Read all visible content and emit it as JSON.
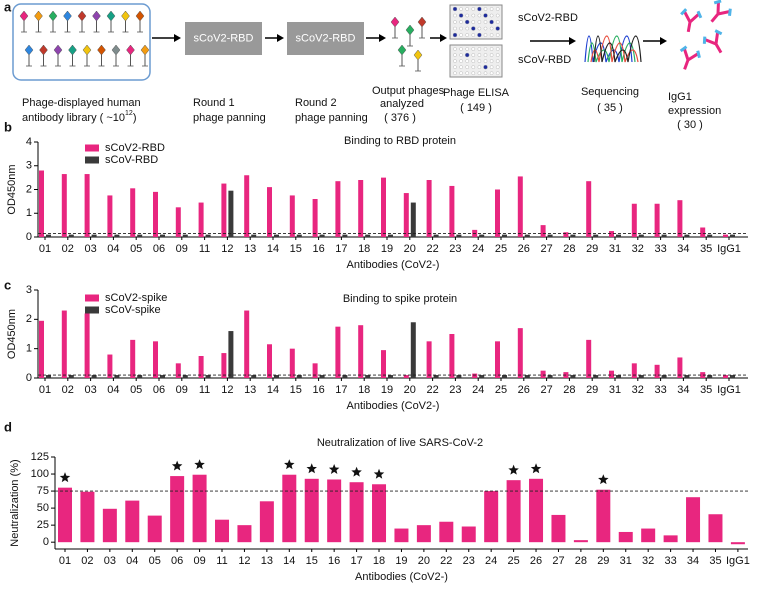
{
  "schematic": {
    "panel_label": "a",
    "library_lines": [
      "Phage-displayed human",
      "antibody library ( ~10"
    ],
    "library_exponent": "12",
    "library_suffix": ")",
    "round1_box": "sCoV2-RBD",
    "round1_lines": [
      "Round 1",
      "phage panning"
    ],
    "round2_box": "sCoV2-RBD",
    "round2_lines": [
      "Round 2",
      "phage panning"
    ],
    "output_lines": [
      "Output phages",
      "analyzed",
      "( 376 )"
    ],
    "elisa_plates": [
      "sCoV2-RBD",
      "sCoV-RBD"
    ],
    "elisa_lines": [
      "Phage ELISA",
      "( 149 )"
    ],
    "sequencing_lines": [
      "Sequencing",
      "( 35 )"
    ],
    "igg_lines": [
      "IgG1",
      "expression",
      "( 30 )"
    ]
  },
  "chart_data": [
    {
      "type": "bar",
      "panel_label": "b",
      "title": "Binding to RBD protein",
      "ylabel": "OD450nm",
      "xlabel": "Antibodies (CoV2-)",
      "categories": [
        "01",
        "02",
        "03",
        "04",
        "05",
        "06",
        "09",
        "11",
        "12",
        "13",
        "14",
        "15",
        "16",
        "17",
        "18",
        "19",
        "20",
        "22",
        "23",
        "24",
        "25",
        "26",
        "27",
        "28",
        "29",
        "31",
        "32",
        "33",
        "34",
        "35",
        "IgG1"
      ],
      "series": [
        {
          "name": "sCoV2-RBD",
          "color": "#e8267f",
          "values": [
            2.8,
            2.65,
            2.65,
            1.75,
            2.05,
            1.9,
            1.25,
            1.45,
            2.25,
            2.6,
            2.1,
            1.75,
            1.6,
            2.35,
            2.4,
            2.5,
            1.85,
            2.4,
            2.15,
            0.3,
            2.0,
            2.55,
            0.5,
            0.2,
            2.35,
            0.25,
            1.4,
            1.4,
            1.55,
            0.4,
            0.1
          ]
        },
        {
          "name": "sCoV-RBD",
          "color": "#3a3a3a",
          "values": [
            0.1,
            0.1,
            0.1,
            0.1,
            0.1,
            0.1,
            0.1,
            0.1,
            1.95,
            0.1,
            0.1,
            0.1,
            0.1,
            0.1,
            0.1,
            0.1,
            1.45,
            0.1,
            0.1,
            0.1,
            0.1,
            0.1,
            0.1,
            0.1,
            0.1,
            0.1,
            0.1,
            0.1,
            0.1,
            0.1,
            0.1
          ]
        }
      ],
      "ylim": [
        0,
        4
      ],
      "yticks": [
        0,
        1,
        2,
        3,
        4
      ],
      "reference_line": 0.15,
      "legend": "top-left"
    },
    {
      "type": "bar",
      "panel_label": "c",
      "title": "Binding to spike protein",
      "ylabel": "OD450nm",
      "xlabel": "Antibodies (CoV2-)",
      "categories": [
        "01",
        "02",
        "03",
        "04",
        "05",
        "06",
        "09",
        "11",
        "12",
        "13",
        "14",
        "15",
        "16",
        "17",
        "18",
        "19",
        "20",
        "22",
        "23",
        "24",
        "25",
        "26",
        "27",
        "28",
        "29",
        "31",
        "32",
        "33",
        "34",
        "35",
        "IgG1"
      ],
      "series": [
        {
          "name": "sCoV2-spike",
          "color": "#e8267f",
          "values": [
            1.95,
            2.3,
            2.2,
            0.8,
            1.3,
            1.25,
            0.5,
            0.75,
            0.85,
            2.3,
            1.15,
            1.0,
            0.5,
            1.75,
            1.8,
            0.95,
            0.1,
            1.25,
            1.5,
            0.15,
            1.25,
            1.7,
            0.25,
            0.2,
            1.3,
            0.25,
            0.5,
            0.45,
            0.7,
            0.2,
            0.1
          ]
        },
        {
          "name": "sCoV-spike",
          "color": "#3a3a3a",
          "values": [
            0.1,
            0.1,
            0.1,
            0.1,
            0.1,
            0.1,
            0.1,
            0.1,
            1.6,
            0.1,
            0.1,
            0.1,
            0.1,
            0.1,
            0.1,
            0.1,
            1.9,
            0.1,
            0.1,
            0.1,
            0.1,
            0.1,
            0.1,
            0.1,
            0.1,
            0.1,
            0.1,
            0.1,
            0.1,
            0.1,
            0.1
          ]
        }
      ],
      "ylim": [
        0,
        3
      ],
      "yticks": [
        0,
        1,
        2,
        3
      ],
      "reference_line": 0.1,
      "legend": "top-left"
    },
    {
      "type": "bar",
      "panel_label": "d",
      "title": "Neutralization of live SARS-CoV-2",
      "ylabel": "Neutralization (%)",
      "xlabel": "Antibodies (CoV2-)",
      "categories": [
        "01",
        "02",
        "03",
        "04",
        "05",
        "06",
        "09",
        "11",
        "12",
        "13",
        "14",
        "15",
        "16",
        "17",
        "18",
        "19",
        "20",
        "22",
        "23",
        "24",
        "25",
        "26",
        "27",
        "28",
        "29",
        "31",
        "32",
        "33",
        "34",
        "35",
        "IgG1"
      ],
      "series": [
        {
          "color": "#e8267f",
          "values": [
            80,
            74,
            49,
            61,
            39,
            97,
            99,
            33,
            25,
            60,
            99,
            93,
            92,
            88,
            85,
            20,
            25,
            30,
            23,
            75,
            91,
            93,
            40,
            3,
            77,
            15,
            20,
            10,
            66,
            41,
            -3
          ]
        }
      ],
      "ylim": [
        -10,
        125
      ],
      "yticks": [
        0,
        25,
        50,
        75,
        100,
        125
      ],
      "reference_line": 75,
      "starred": [
        "01",
        "06",
        "09",
        "14",
        "15",
        "16",
        "17",
        "18",
        "25",
        "26",
        "29"
      ]
    }
  ]
}
